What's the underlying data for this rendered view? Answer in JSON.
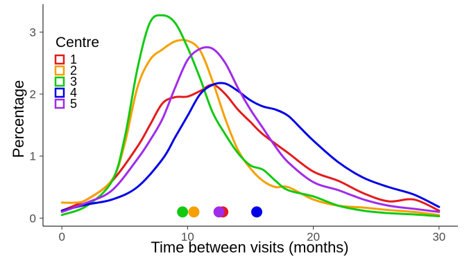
{
  "chart_data": {
    "type": "line",
    "xlabel": "Time between visits (months)",
    "ylabel": "Percentage",
    "xlim": [
      -1.5,
      31.5
    ],
    "ylim": [
      -0.13,
      3.45
    ],
    "x_ticks": [
      0,
      10,
      20,
      30
    ],
    "y_ticks": [
      0,
      1,
      2,
      3
    ],
    "grid": false,
    "legend": {
      "title": "Centre",
      "placement": "top-left"
    },
    "series": [
      {
        "name": "1",
        "color": "#E41A1C",
        "x": [
          0,
          2,
          4,
          6,
          7,
          8,
          9,
          10,
          11,
          12,
          13,
          14,
          15,
          16,
          18,
          20,
          22,
          24,
          26,
          28,
          30
        ],
        "y": [
          0.12,
          0.3,
          0.6,
          1.15,
          1.5,
          1.85,
          1.95,
          1.96,
          2.05,
          2.15,
          2.0,
          1.75,
          1.55,
          1.35,
          1.05,
          0.75,
          0.6,
          0.4,
          0.27,
          0.3,
          0.12
        ],
        "marker_x": 12.8
      },
      {
        "name": "2",
        "color": "#F5A000",
        "x": [
          0,
          1,
          2,
          4,
          5,
          6,
          7,
          8,
          9,
          10,
          11,
          12,
          13,
          14,
          15,
          16,
          17,
          18,
          20,
          22,
          24,
          26,
          28,
          30
        ],
        "y": [
          0.25,
          0.25,
          0.3,
          0.62,
          1.2,
          2.1,
          2.55,
          2.72,
          2.85,
          2.86,
          2.7,
          2.2,
          1.6,
          1.1,
          0.8,
          0.6,
          0.5,
          0.5,
          0.3,
          0.2,
          0.17,
          0.13,
          0.1,
          0.05
        ],
        "marker_x": 10.5
      },
      {
        "name": "3",
        "color": "#11C911",
        "x": [
          0,
          2,
          4,
          5,
          6,
          7,
          8,
          9,
          10,
          11,
          12,
          13,
          14,
          15,
          16,
          17,
          18,
          20,
          22,
          24,
          26,
          28,
          30
        ],
        "y": [
          0.05,
          0.2,
          0.6,
          1.3,
          2.4,
          3.15,
          3.27,
          3.15,
          2.75,
          2.25,
          1.7,
          1.35,
          1.05,
          0.85,
          0.78,
          0.6,
          0.45,
          0.35,
          0.2,
          0.12,
          0.08,
          0.06,
          0.03
        ],
        "marker_x": 9.6
      },
      {
        "name": "4",
        "color": "#0000E5",
        "x": [
          0,
          2,
          4,
          6,
          8,
          9,
          10,
          11,
          12,
          13,
          14,
          15,
          16,
          17,
          18,
          19,
          20,
          22,
          24,
          26,
          28,
          30
        ],
        "y": [
          0.12,
          0.22,
          0.3,
          0.5,
          0.95,
          1.3,
          1.65,
          2.0,
          2.15,
          2.17,
          2.05,
          1.9,
          1.8,
          1.75,
          1.65,
          1.45,
          1.25,
          0.9,
          0.65,
          0.5,
          0.38,
          0.18
        ],
        "marker_x": 15.5
      },
      {
        "name": "5",
        "color": "#A02BE9",
        "x": [
          0,
          2,
          4,
          6,
          7,
          8,
          9,
          10,
          11,
          12,
          13,
          14,
          15,
          16,
          17,
          18,
          20,
          22,
          24,
          26,
          28,
          30
        ],
        "y": [
          0.1,
          0.25,
          0.45,
          0.95,
          1.25,
          1.6,
          2.1,
          2.55,
          2.73,
          2.73,
          2.5,
          2.1,
          1.75,
          1.45,
          1.15,
          0.9,
          0.58,
          0.45,
          0.3,
          0.2,
          0.15,
          0.1
        ],
        "marker_x": 12.5
      }
    ]
  }
}
